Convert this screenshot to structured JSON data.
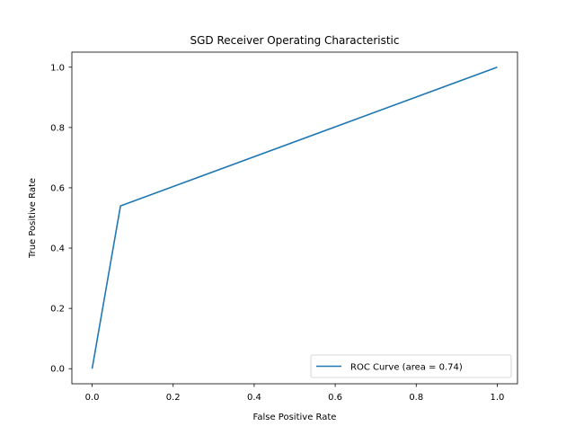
{
  "chart_data": {
    "type": "line",
    "title": "SGD Receiver Operating Characteristic",
    "xlabel": "False Positive Rate",
    "ylabel": "True Positive Rate",
    "xlim": [
      -0.05,
      1.05
    ],
    "ylim": [
      -0.05,
      1.05
    ],
    "xticks": [
      0.0,
      0.2,
      0.4,
      0.6,
      0.8,
      1.0
    ],
    "yticks": [
      0.0,
      0.2,
      0.4,
      0.6,
      0.8,
      1.0
    ],
    "xtick_labels": [
      "0.0",
      "0.2",
      "0.4",
      "0.6",
      "0.8",
      "1.0"
    ],
    "ytick_labels": [
      "0.0",
      "0.2",
      "0.4",
      "0.6",
      "0.8",
      "1.0"
    ],
    "grid": false,
    "legend_position": "lower-right",
    "series": [
      {
        "name": "ROC Curve (area = 0.74)",
        "color": "#1f77b4",
        "x": [
          0.0,
          0.07,
          1.0
        ],
        "y": [
          0.0,
          0.54,
          1.0
        ]
      }
    ]
  }
}
